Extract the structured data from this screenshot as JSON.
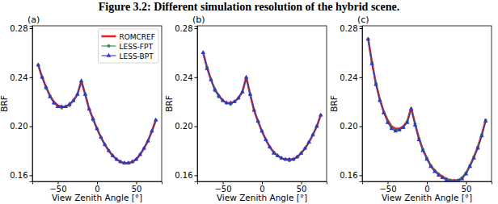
{
  "title": "Figure 3.2: Different simulation resolution of the hybrid scene.",
  "chart_data": [
    {
      "type": "line",
      "title": "(a)",
      "xlabel": "View Zenith Angle [°]",
      "ylabel": "BRF",
      "xlim": [
        -82.5,
        82.5
      ],
      "ylim": [
        0.155,
        0.282
      ],
      "xticks": [
        {
          "value": -50,
          "label": "−50"
        },
        0,
        50
      ],
      "yticks": [
        0.16,
        {
          "value": 0.2,
          "label": "0.20"
        },
        0.24,
        0.28
      ],
      "legend": "upper right",
      "x": [
        -75,
        -70,
        -65,
        -60,
        -55,
        -50,
        -45,
        -40,
        -35,
        -30,
        -25,
        -20,
        -15,
        -10,
        -5,
        0,
        5,
        10,
        15,
        20,
        25,
        30,
        35,
        40,
        45,
        50,
        55,
        60,
        65,
        70,
        75
      ],
      "series": [
        {
          "name": "ROMCREF",
          "color": "#e8231c",
          "marker": "none",
          "line_style": "solid",
          "values": [
            0.25,
            0.24,
            0.232,
            0.225,
            0.22,
            0.217,
            0.216,
            0.216,
            0.218,
            0.221,
            0.226,
            0.237,
            0.226,
            0.214,
            0.206,
            0.198,
            0.191,
            0.185,
            0.18,
            0.176,
            0.173,
            0.171,
            0.17,
            0.17,
            0.171,
            0.173,
            0.177,
            0.182,
            0.188,
            0.196,
            0.205
          ]
        },
        {
          "name": "LESS-FPT",
          "color": "#2e8b3a",
          "marker": "circle",
          "line_style": "solid",
          "values": [
            0.25,
            0.24,
            0.231,
            0.225,
            0.219,
            0.216,
            0.215,
            0.216,
            0.217,
            0.221,
            0.226,
            0.236,
            0.226,
            0.214,
            0.205,
            0.198,
            0.191,
            0.185,
            0.18,
            0.176,
            0.173,
            0.171,
            0.17,
            0.17,
            0.171,
            0.173,
            0.177,
            0.182,
            0.188,
            0.196,
            0.205
          ]
        },
        {
          "name": "LESS-BPT",
          "color": "#3535c8",
          "marker": "triangle",
          "line_style": "solid",
          "values": [
            0.25,
            0.24,
            0.232,
            0.224,
            0.219,
            0.216,
            0.216,
            0.216,
            0.218,
            0.221,
            0.226,
            0.237,
            0.226,
            0.214,
            0.206,
            0.198,
            0.191,
            0.185,
            0.18,
            0.176,
            0.173,
            0.171,
            0.17,
            0.17,
            0.171,
            0.173,
            0.177,
            0.182,
            0.188,
            0.196,
            0.205
          ]
        }
      ]
    },
    {
      "type": "line",
      "title": "(b)",
      "xlabel": "View Zenith Angle [°]",
      "ylabel": "BRF",
      "xlim": [
        -82.5,
        82.5
      ],
      "ylim": [
        0.155,
        0.282
      ],
      "xticks": [
        {
          "value": -50,
          "label": "−50"
        },
        0,
        50
      ],
      "yticks": [
        0.16,
        {
          "value": 0.2,
          "label": "0.20"
        },
        0.24,
        0.28
      ],
      "x": [
        -75,
        -70,
        -65,
        -60,
        -55,
        -50,
        -45,
        -40,
        -35,
        -30,
        -25,
        -20,
        -15,
        -10,
        -5,
        0,
        5,
        10,
        15,
        20,
        25,
        30,
        35,
        40,
        45,
        50,
        55,
        60,
        65,
        70,
        75
      ],
      "series": [
        {
          "color": "#e8231c",
          "marker": "none",
          "line_style": "solid",
          "values": [
            0.26,
            0.248,
            0.238,
            0.23,
            0.225,
            0.221,
            0.219,
            0.219,
            0.22,
            0.223,
            0.228,
            0.24,
            0.226,
            0.213,
            0.204,
            0.196,
            0.189,
            0.183,
            0.179,
            0.176,
            0.174,
            0.173,
            0.173,
            0.173,
            0.175,
            0.178,
            0.182,
            0.187,
            0.193,
            0.2,
            0.209
          ]
        },
        {
          "color": "#2e8b3a",
          "marker": "circle",
          "line_style": "solid",
          "values": [
            0.26,
            0.248,
            0.238,
            0.229,
            0.224,
            0.221,
            0.219,
            0.218,
            0.22,
            0.223,
            0.228,
            0.239,
            0.226,
            0.213,
            0.204,
            0.196,
            0.189,
            0.183,
            0.179,
            0.176,
            0.174,
            0.173,
            0.172,
            0.173,
            0.175,
            0.178,
            0.182,
            0.187,
            0.193,
            0.2,
            0.209
          ]
        },
        {
          "color": "#3535c8",
          "marker": "triangle",
          "line_style": "solid",
          "values": [
            0.26,
            0.247,
            0.238,
            0.23,
            0.225,
            0.221,
            0.219,
            0.219,
            0.22,
            0.223,
            0.228,
            0.24,
            0.226,
            0.213,
            0.204,
            0.196,
            0.189,
            0.183,
            0.178,
            0.176,
            0.174,
            0.173,
            0.173,
            0.173,
            0.175,
            0.178,
            0.182,
            0.187,
            0.193,
            0.2,
            0.209
          ]
        }
      ]
    },
    {
      "type": "line",
      "title": "(c)",
      "xlabel": "View Zenith Angle [°]",
      "ylabel": "BRF",
      "xlim": [
        -82.5,
        82.5
      ],
      "ylim": [
        0.155,
        0.282
      ],
      "xticks": [
        {
          "value": -50,
          "label": "−50"
        },
        0,
        50
      ],
      "yticks": [
        0.16,
        {
          "value": 0.2,
          "label": "0.20"
        },
        0.24,
        0.28
      ],
      "x": [
        -75,
        -70,
        -65,
        -60,
        -55,
        -50,
        -45,
        -40,
        -35,
        -30,
        -25,
        -20,
        -15,
        -10,
        -5,
        0,
        5,
        10,
        15,
        20,
        25,
        30,
        35,
        40,
        45,
        50,
        55,
        60,
        65,
        70,
        75
      ],
      "series": [
        {
          "color": "#e8231c",
          "marker": "none",
          "line_style": "solid",
          "values": [
            0.272,
            0.252,
            0.235,
            0.222,
            0.212,
            0.205,
            0.2,
            0.198,
            0.198,
            0.2,
            0.204,
            0.215,
            0.202,
            0.19,
            0.181,
            0.174,
            0.168,
            0.164,
            0.161,
            0.159,
            0.157,
            0.156,
            0.156,
            0.156,
            0.158,
            0.162,
            0.168,
            0.175,
            0.183,
            0.193,
            0.205
          ]
        },
        {
          "color": "#2e8b3a",
          "marker": "circle",
          "line_style": "solid",
          "values": [
            0.271,
            0.252,
            0.235,
            0.221,
            0.211,
            0.204,
            0.199,
            0.197,
            0.197,
            0.199,
            0.204,
            0.214,
            0.202,
            0.19,
            0.181,
            0.174,
            0.168,
            0.164,
            0.161,
            0.158,
            0.157,
            0.156,
            0.155,
            0.156,
            0.158,
            0.162,
            0.168,
            0.175,
            0.183,
            0.193,
            0.205
          ]
        },
        {
          "color": "#3535c8",
          "marker": "triangle",
          "line_style": "solid",
          "values": [
            0.271,
            0.251,
            0.234,
            0.221,
            0.211,
            0.203,
            0.198,
            0.196,
            0.197,
            0.199,
            0.203,
            0.214,
            0.201,
            0.189,
            0.18,
            0.173,
            0.167,
            0.163,
            0.16,
            0.158,
            0.156,
            0.155,
            0.155,
            0.155,
            0.157,
            0.161,
            0.167,
            0.174,
            0.182,
            0.192,
            0.204
          ]
        }
      ]
    }
  ]
}
